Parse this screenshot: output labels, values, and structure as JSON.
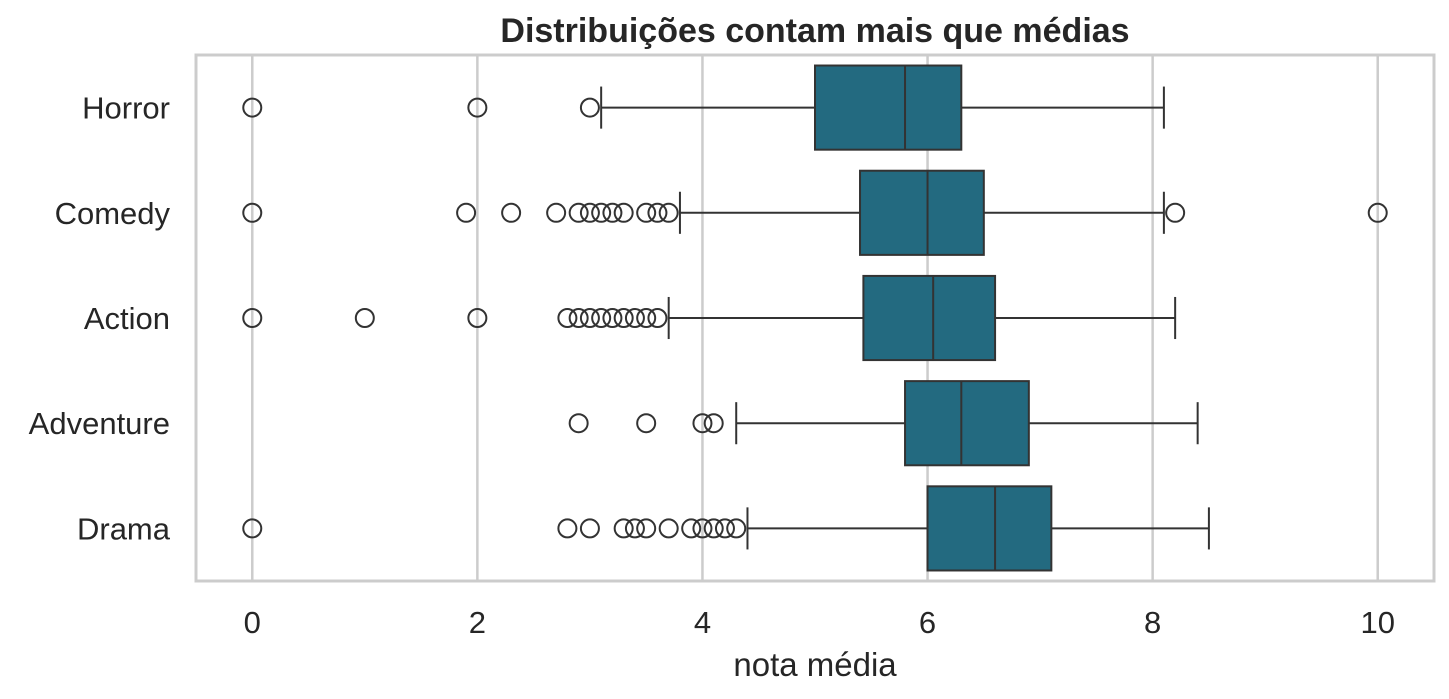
{
  "chart_data": {
    "type": "boxplot",
    "orientation": "horizontal",
    "title": "Distribuições contam mais que médias",
    "xlabel": "nota média",
    "ylabel": "",
    "xlim": [
      -0.5,
      10.5
    ],
    "xticks": [
      0,
      2,
      4,
      6,
      8,
      10
    ],
    "grid": "vertical",
    "colors": {
      "box": "#236a80",
      "line": "#333333",
      "grid": "#cccccc",
      "frame": "#cccccc"
    },
    "categories": [
      "Horror",
      "Comedy",
      "Action",
      "Adventure",
      "Drama"
    ],
    "boxes": [
      {
        "category": "Horror",
        "whisker_low": 3.1,
        "q1": 5.0,
        "median": 5.8,
        "q3": 6.3,
        "whisker_high": 8.1,
        "outliers": [
          0,
          2,
          3.0
        ]
      },
      {
        "category": "Comedy",
        "whisker_low": 3.8,
        "q1": 5.4,
        "median": 6.0,
        "q3": 6.5,
        "whisker_high": 8.1,
        "outliers": [
          0,
          1.9,
          2.3,
          2.7,
          2.9,
          3.0,
          3.1,
          3.2,
          3.3,
          3.5,
          3.6,
          3.7,
          8.2,
          10
        ]
      },
      {
        "category": "Action",
        "whisker_low": 3.7,
        "q1": 5.43,
        "median": 6.05,
        "q3": 6.6,
        "whisker_high": 8.2,
        "outliers": [
          0,
          1,
          2,
          2.8,
          2.9,
          3.0,
          3.1,
          3.2,
          3.3,
          3.4,
          3.5,
          3.6
        ]
      },
      {
        "category": "Adventure",
        "whisker_low": 4.3,
        "q1": 5.8,
        "median": 6.3,
        "q3": 6.9,
        "whisker_high": 8.4,
        "outliers": [
          2.9,
          3.5,
          4.0,
          4.1
        ]
      },
      {
        "category": "Drama",
        "whisker_low": 4.4,
        "q1": 6.0,
        "median": 6.6,
        "q3": 7.1,
        "whisker_high": 8.5,
        "outliers": [
          0,
          2.8,
          3.0,
          3.3,
          3.4,
          3.5,
          3.7,
          3.9,
          4.0,
          4.1,
          4.2,
          4.3
        ]
      }
    ]
  }
}
